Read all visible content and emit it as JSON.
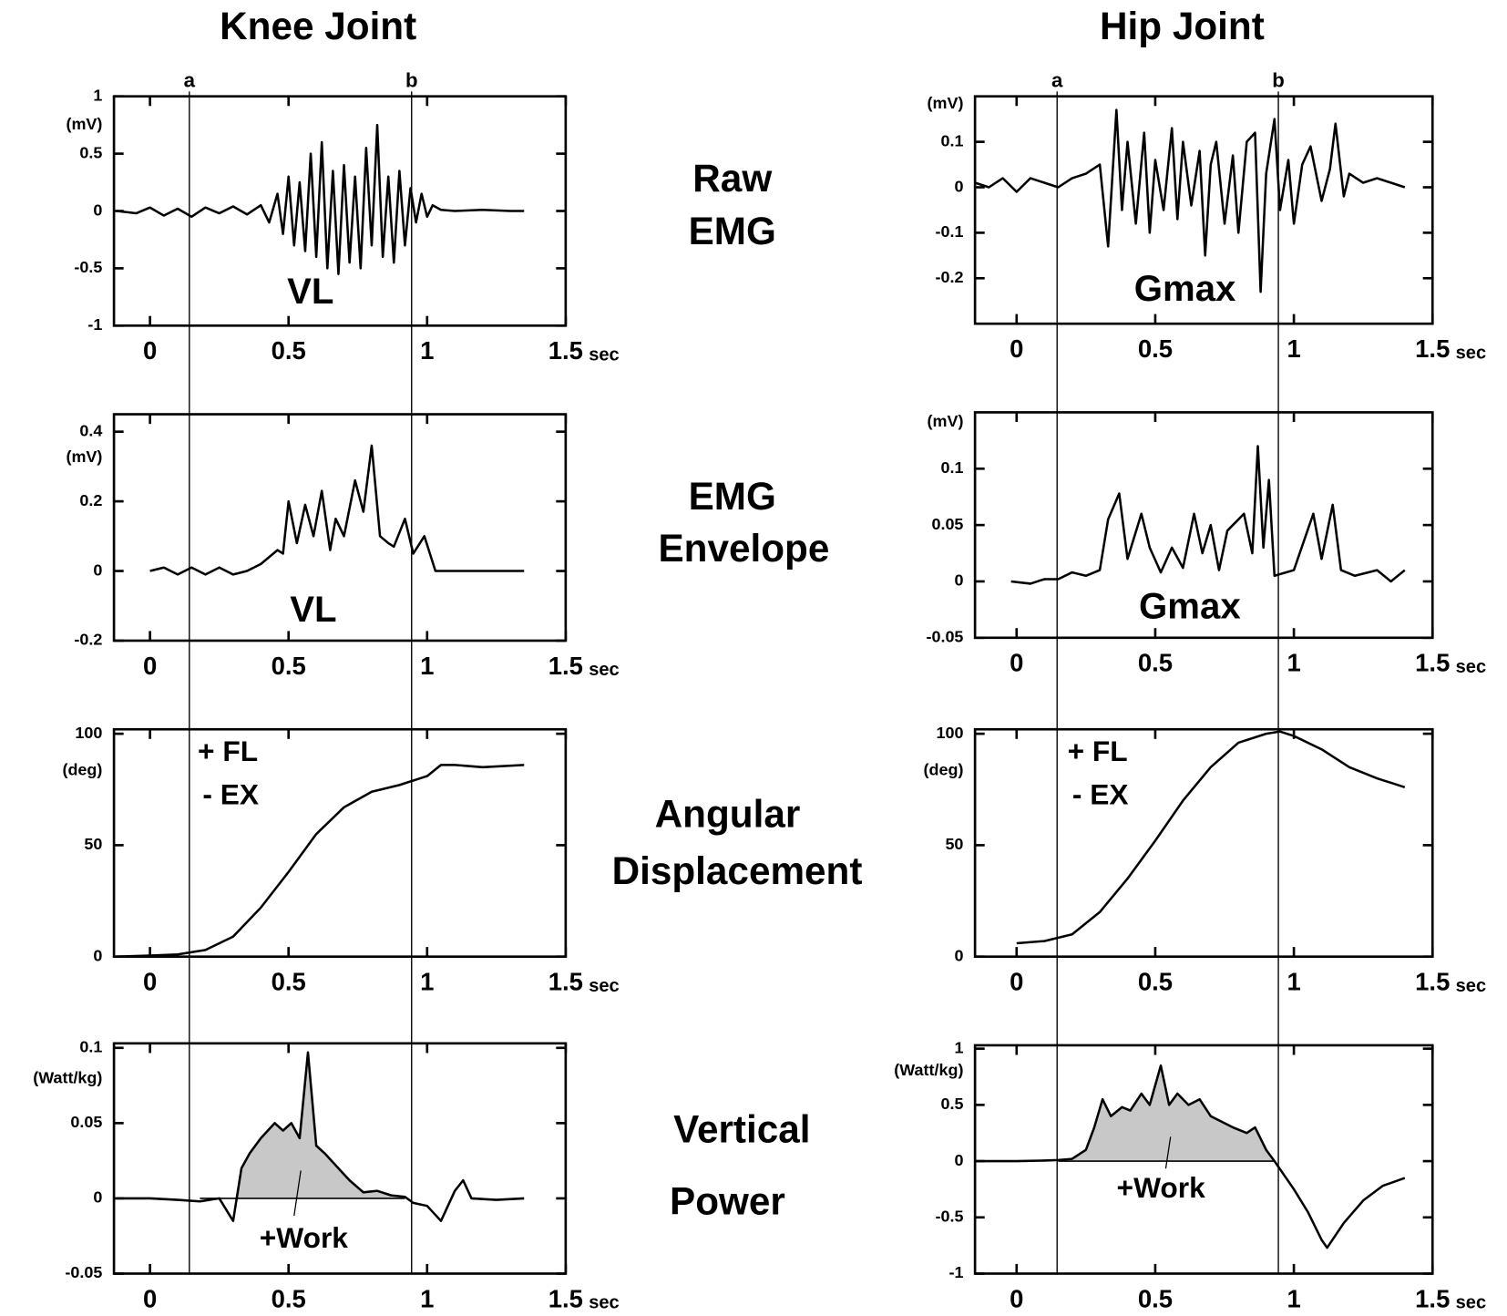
{
  "columns": [
    {
      "title": "Knee Joint",
      "markers": [
        {
          "label": "a",
          "x": 0.142
        },
        {
          "label": "b",
          "x": 0.944
        }
      ]
    },
    {
      "title": "Hip Joint",
      "markers": [
        {
          "label": "a",
          "x": 0.146
        },
        {
          "label": "b",
          "x": 0.944
        }
      ]
    }
  ],
  "rows": [
    [
      "Raw",
      "EMG"
    ],
    [
      "EMG",
      "Envelope"
    ],
    [
      "Angular",
      "Displacement"
    ],
    [
      "Vertical",
      "Power"
    ]
  ],
  "chart_data": [
    {
      "type": "line",
      "x_unit": "sec",
      "y_unit": "(mV)",
      "annotations": [
        "VL"
      ],
      "xlim": [
        -0.13,
        1.5
      ],
      "xticks": [
        0,
        0.5,
        1,
        1.5
      ],
      "ylim": [
        -1,
        1
      ],
      "yticks": [
        -1,
        -0.5,
        0,
        0.5,
        1
      ],
      "series": [
        {
          "color": "#000000",
          "x": [
            -0.12,
            -0.05,
            0,
            0.05,
            0.1,
            0.15,
            0.2,
            0.25,
            0.3,
            0.35,
            0.4,
            0.43,
            0.46,
            0.48,
            0.5,
            0.52,
            0.54,
            0.56,
            0.58,
            0.6,
            0.62,
            0.64,
            0.66,
            0.68,
            0.7,
            0.72,
            0.74,
            0.76,
            0.78,
            0.8,
            0.82,
            0.84,
            0.86,
            0.88,
            0.9,
            0.92,
            0.94,
            0.96,
            0.98,
            1.0,
            1.02,
            1.05,
            1.1,
            1.2,
            1.3,
            1.35
          ],
          "values": [
            0,
            -0.02,
            0.03,
            -0.04,
            0.02,
            -0.05,
            0.03,
            -0.02,
            0.04,
            -0.03,
            0.05,
            -0.1,
            0.15,
            -0.2,
            0.3,
            -0.3,
            0.25,
            -0.35,
            0.5,
            -0.4,
            0.6,
            -0.5,
            0.35,
            -0.55,
            0.4,
            -0.45,
            0.3,
            -0.5,
            0.55,
            -0.3,
            0.75,
            -0.4,
            0.3,
            -0.45,
            0.35,
            -0.3,
            0.2,
            -0.1,
            0.15,
            -0.05,
            0.05,
            0.01,
            0,
            0.01,
            0,
            0
          ]
        }
      ]
    },
    {
      "type": "line",
      "x_unit": "sec",
      "y_unit": "(mV)",
      "annotations": [
        "Gmax"
      ],
      "xlim": [
        -0.15,
        1.5
      ],
      "xticks": [
        0,
        0.5,
        1,
        1.5
      ],
      "ylim": [
        -0.3,
        0.2
      ],
      "yticks": [
        -0.2,
        -0.1,
        0,
        0.1
      ],
      "series": [
        {
          "color": "#000000",
          "x": [
            -0.15,
            -0.1,
            -0.05,
            0,
            0.05,
            0.1,
            0.15,
            0.2,
            0.25,
            0.3,
            0.33,
            0.36,
            0.38,
            0.4,
            0.43,
            0.46,
            0.48,
            0.5,
            0.53,
            0.56,
            0.58,
            0.6,
            0.63,
            0.66,
            0.68,
            0.7,
            0.72,
            0.75,
            0.78,
            0.8,
            0.83,
            0.86,
            0.88,
            0.9,
            0.93,
            0.95,
            0.98,
            1.0,
            1.03,
            1.06,
            1.1,
            1.13,
            1.15,
            1.18,
            1.2,
            1.25,
            1.3,
            1.35,
            1.4
          ],
          "values": [
            0.01,
            0,
            0.02,
            -0.01,
            0.02,
            0.01,
            0,
            0.02,
            0.03,
            0.05,
            -0.13,
            0.17,
            -0.05,
            0.1,
            -0.08,
            0.12,
            -0.1,
            0.06,
            -0.05,
            0.13,
            -0.07,
            0.1,
            -0.04,
            0.08,
            -0.15,
            0.05,
            0.1,
            -0.08,
            0.07,
            -0.1,
            0.1,
            0.12,
            -0.23,
            0.03,
            0.15,
            -0.05,
            0.06,
            -0.08,
            0.05,
            0.09,
            -0.03,
            0.04,
            0.14,
            -0.02,
            0.03,
            0.01,
            0.02,
            0.01,
            0
          ]
        }
      ]
    },
    {
      "type": "line",
      "x_unit": "sec",
      "y_unit": "(mV)",
      "annotations": [
        "VL"
      ],
      "xlim": [
        -0.13,
        1.5
      ],
      "xticks": [
        0,
        0.5,
        1,
        1.5
      ],
      "ylim": [
        -0.2,
        0.45
      ],
      "yticks": [
        -0.2,
        0,
        0.2,
        0.4
      ],
      "series": [
        {
          "color": "#000000",
          "x": [
            0,
            0.05,
            0.1,
            0.15,
            0.2,
            0.25,
            0.3,
            0.35,
            0.4,
            0.43,
            0.46,
            0.48,
            0.5,
            0.53,
            0.56,
            0.59,
            0.62,
            0.65,
            0.67,
            0.7,
            0.74,
            0.77,
            0.8,
            0.83,
            0.86,
            0.88,
            0.92,
            0.95,
            0.99,
            1.03,
            1.1,
            1.2,
            1.3,
            1.35
          ],
          "values": [
            0,
            0.01,
            -0.01,
            0.01,
            -0.01,
            0.01,
            -0.01,
            0,
            0.02,
            0.04,
            0.06,
            0.05,
            0.2,
            0.08,
            0.19,
            0.1,
            0.23,
            0.06,
            0.15,
            0.1,
            0.26,
            0.17,
            0.36,
            0.1,
            0.08,
            0.07,
            0.15,
            0.05,
            0.1,
            0,
            0,
            0,
            0,
            0
          ]
        }
      ]
    },
    {
      "type": "line",
      "x_unit": "sec",
      "y_unit": "(mV)",
      "annotations": [
        "Gmax"
      ],
      "xlim": [
        -0.15,
        1.5
      ],
      "xticks": [
        0,
        0.5,
        1,
        1.5
      ],
      "ylim": [
        -0.05,
        0.15
      ],
      "yticks": [
        -0.05,
        0,
        0.05,
        0.1
      ],
      "series": [
        {
          "color": "#000000",
          "x": [
            -0.02,
            0.05,
            0.1,
            0.15,
            0.2,
            0.25,
            0.3,
            0.33,
            0.37,
            0.4,
            0.45,
            0.48,
            0.52,
            0.56,
            0.6,
            0.64,
            0.67,
            0.7,
            0.73,
            0.76,
            0.8,
            0.82,
            0.85,
            0.87,
            0.89,
            0.91,
            0.93,
            1.0,
            1.07,
            1.1,
            1.14,
            1.17,
            1.22,
            1.3,
            1.35,
            1.4
          ],
          "values": [
            0,
            -0.002,
            0.002,
            0.002,
            0.008,
            0.005,
            0.01,
            0.055,
            0.078,
            0.02,
            0.06,
            0.03,
            0.008,
            0.03,
            0.012,
            0.06,
            0.025,
            0.05,
            0.01,
            0.045,
            0.055,
            0.06,
            0.025,
            0.12,
            0.03,
            0.09,
            0.005,
            0.01,
            0.06,
            0.02,
            0.068,
            0.01,
            0.005,
            0.01,
            0,
            0.01
          ]
        }
      ]
    },
    {
      "type": "line",
      "x_unit": "sec",
      "y_unit": "(deg)",
      "annotations": [
        "+ FL",
        "- EX"
      ],
      "xlim": [
        -0.13,
        1.5
      ],
      "xticks": [
        0,
        0.5,
        1,
        1.5
      ],
      "ylim": [
        0,
        102
      ],
      "yticks": [
        0,
        50,
        100
      ],
      "series": [
        {
          "color": "#000000",
          "x": [
            -0.12,
            0,
            0.1,
            0.2,
            0.3,
            0.4,
            0.5,
            0.6,
            0.7,
            0.8,
            0.9,
            1.0,
            1.05,
            1.1,
            1.2,
            1.35
          ],
          "values": [
            0,
            0.5,
            1,
            3,
            9,
            22,
            38,
            55,
            67,
            74,
            77,
            81,
            86,
            86,
            85,
            86
          ]
        }
      ]
    },
    {
      "type": "line",
      "x_unit": "sec",
      "y_unit": "(deg)",
      "annotations": [
        "+ FL",
        "- EX"
      ],
      "xlim": [
        -0.15,
        1.5
      ],
      "xticks": [
        0,
        0.5,
        1,
        1.5
      ],
      "ylim": [
        0,
        102
      ],
      "yticks": [
        0,
        50,
        100
      ],
      "series": [
        {
          "color": "#000000",
          "x": [
            0,
            0.1,
            0.2,
            0.3,
            0.4,
            0.5,
            0.6,
            0.7,
            0.8,
            0.9,
            0.95,
            1.0,
            1.1,
            1.2,
            1.3,
            1.4
          ],
          "values": [
            6,
            7,
            10,
            20,
            35,
            52,
            70,
            85,
            96,
            100,
            101,
            99,
            93,
            85,
            80,
            76
          ]
        }
      ]
    },
    {
      "type": "line",
      "x_unit": "sec",
      "y_unit": "(Watt/kg)",
      "annotations": [
        "+Work"
      ],
      "shade_color": "#c8c8c8",
      "xlim": [
        -0.13,
        1.5
      ],
      "xticks": [
        0,
        0.5,
        1,
        1.5
      ],
      "ylim": [
        -0.05,
        0.103
      ],
      "yticks": [
        -0.05,
        0,
        0.05,
        0.1
      ],
      "series": [
        {
          "color": "#000000",
          "x": [
            -0.12,
            0,
            0.1,
            0.18,
            0.25,
            0.3,
            0.33,
            0.36,
            0.4,
            0.45,
            0.48,
            0.51,
            0.54,
            0.57,
            0.6,
            0.63,
            0.67,
            0.72,
            0.77,
            0.82,
            0.87,
            0.92,
            0.95,
            1.0,
            1.05,
            1.1,
            1.13,
            1.16,
            1.25,
            1.35
          ],
          "values": [
            0,
            0,
            -0.001,
            -0.002,
            0,
            -0.015,
            0.02,
            0.03,
            0.04,
            0.05,
            0.045,
            0.05,
            0.04,
            0.097,
            0.035,
            0.03,
            0.022,
            0.012,
            0.004,
            0.005,
            0.002,
            0.001,
            -0.003,
            -0.005,
            -0.015,
            0.005,
            0.012,
            0,
            -0.001,
            0
          ]
        }
      ]
    },
    {
      "type": "line",
      "x_unit": "sec",
      "y_unit": "(Watt/kg)",
      "annotations": [
        "+Work"
      ],
      "shade_color": "#c8c8c8",
      "xlim": [
        -0.15,
        1.5
      ],
      "xticks": [
        0,
        0.5,
        1,
        1.5
      ],
      "ylim": [
        -1,
        1.03
      ],
      "yticks": [
        -1,
        -0.5,
        0,
        0.5,
        1
      ],
      "series": [
        {
          "color": "#000000",
          "x": [
            -0.15,
            0,
            0.1,
            0.15,
            0.2,
            0.25,
            0.28,
            0.31,
            0.34,
            0.38,
            0.41,
            0.45,
            0.48,
            0.52,
            0.55,
            0.58,
            0.62,
            0.66,
            0.7,
            0.74,
            0.78,
            0.83,
            0.86,
            0.9,
            0.93,
            1.0,
            1.05,
            1.1,
            1.12,
            1.18,
            1.25,
            1.32,
            1.4
          ],
          "values": [
            0,
            0,
            0.005,
            0.01,
            0.02,
            0.1,
            0.3,
            0.55,
            0.4,
            0.48,
            0.45,
            0.6,
            0.5,
            0.85,
            0.5,
            0.6,
            0.5,
            0.55,
            0.4,
            0.35,
            0.3,
            0.25,
            0.3,
            0.1,
            0,
            -0.25,
            -0.45,
            -0.7,
            -0.77,
            -0.55,
            -0.35,
            -0.22,
            -0.15
          ]
        }
      ]
    }
  ]
}
